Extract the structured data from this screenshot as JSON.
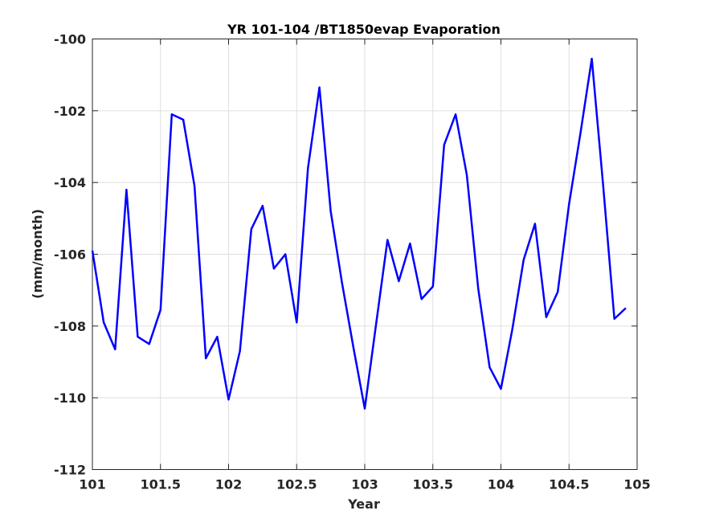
{
  "chart_data": {
    "type": "line",
    "title": "YR 101-104 /BT1850evap Evaporation",
    "xlabel": "Year",
    "ylabel": "(mm/month)",
    "xlim": [
      101,
      105
    ],
    "ylim": [
      -112,
      -100
    ],
    "xticks": [
      101,
      101.5,
      102,
      102.5,
      103,
      103.5,
      104,
      104.5,
      105
    ],
    "xtick_labels": [
      "101",
      "101.5",
      "102",
      "102.5",
      "103",
      "103.5",
      "104",
      "104.5",
      "105"
    ],
    "yticks": [
      -112,
      -110,
      -108,
      -106,
      -104,
      -102,
      -100
    ],
    "ytick_labels": [
      "-112",
      "-110",
      "-108",
      "-106",
      "-104",
      "-102",
      "-100"
    ],
    "grid": true,
    "legend": "none",
    "series": [
      {
        "color": "#0000ff",
        "x": [
          101.0,
          101.083,
          101.167,
          101.25,
          101.333,
          101.417,
          101.5,
          101.583,
          101.667,
          101.75,
          101.833,
          101.917,
          102.0,
          102.083,
          102.167,
          102.25,
          102.333,
          102.417,
          102.5,
          102.583,
          102.667,
          102.75,
          102.833,
          102.917,
          103.0,
          103.083,
          103.167,
          103.25,
          103.333,
          103.417,
          103.5,
          103.583,
          103.667,
          103.75,
          103.833,
          103.917,
          104.0,
          104.083,
          104.167,
          104.25,
          104.333,
          104.417,
          104.5,
          104.583,
          104.667,
          104.75,
          104.833,
          104.917
        ],
        "y": [
          -105.9,
          -107.9,
          -108.65,
          -104.2,
          -108.3,
          -108.5,
          -107.55,
          -102.1,
          -102.25,
          -104.1,
          -108.9,
          -108.3,
          -110.05,
          -108.7,
          -105.3,
          -104.65,
          -106.4,
          -106.0,
          -107.9,
          -103.6,
          -101.35,
          -104.8,
          -106.8,
          -108.6,
          -110.3,
          -107.95,
          -105.6,
          -106.75,
          -105.7,
          -107.25,
          -106.9,
          -102.95,
          -102.1,
          -103.8,
          -106.95,
          -109.15,
          -109.75,
          -108.1,
          -106.15,
          -105.15,
          -107.75,
          -107.05,
          -104.6,
          -102.65,
          -100.55,
          -104.05,
          -107.8,
          -107.5
        ]
      }
    ]
  }
}
